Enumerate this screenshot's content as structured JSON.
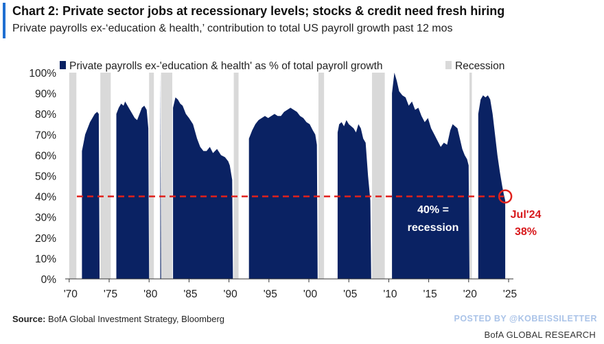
{
  "header": {
    "title": "Chart 2: Private sector jobs at recessionary levels; stocks & credit need fresh hiring",
    "subtitle": "Private payrolls ex-‘education & health,’ contribution to total US payroll growth past 12 mos"
  },
  "footer": {
    "source_label": "Source:",
    "source_text": " BofA Global Investment Strategy, Bloomberg",
    "posted_by": "POSTED BY @KOBEISSILETTER",
    "brand": "BofA GLOBAL RESEARCH"
  },
  "colors": {
    "series": "#0a2263",
    "recession": "#d9d9d9",
    "threshold": "#e0201b",
    "annotation_light": "#ffffff",
    "annotation_red": "#d7191c"
  },
  "chart_data": {
    "type": "area",
    "title": "Chart 2: Private sector jobs at recessionary levels; stocks & credit need fresh hiring",
    "xlabel": "",
    "ylabel": "",
    "xlim": [
      1969.5,
      2025.6
    ],
    "ylim": [
      0,
      100
    ],
    "y_ticks": [
      0,
      10,
      20,
      30,
      40,
      50,
      60,
      70,
      80,
      90,
      100
    ],
    "y_tick_labels": [
      "0%",
      "10%",
      "20%",
      "30%",
      "40%",
      "50%",
      "60%",
      "70%",
      "80%",
      "90%",
      "100%"
    ],
    "x_ticks": [
      1970,
      1975,
      1980,
      1985,
      1990,
      1995,
      2000,
      2005,
      2010,
      2015,
      2020,
      2025
    ],
    "x_tick_labels": [
      "'70",
      "'75",
      "'80",
      "'85",
      "'90",
      "'95",
      "'00",
      "'05",
      "'10",
      "'15",
      "'20",
      "'25"
    ],
    "legend": [
      {
        "name": "Private payrolls ex-'education & health' as % of total payroll growth",
        "kind": "series"
      },
      {
        "name": "Recession",
        "kind": "recession"
      }
    ],
    "legend_position": "top",
    "recessions": [
      [
        1970.0,
        1970.9
      ],
      [
        1973.9,
        1975.2
      ],
      [
        1980.0,
        1980.6
      ],
      [
        1981.5,
        1982.9
      ],
      [
        1990.6,
        1991.2
      ],
      [
        2001.2,
        2001.9
      ],
      [
        2007.9,
        2009.5
      ],
      [
        2020.1,
        2020.4
      ]
    ],
    "series": [
      {
        "name": "Private payrolls ex-'education & health' as % of total payroll growth",
        "segments": [
          [
            [
              1971.6,
              0
            ],
            [
              1971.6,
              62
            ],
            [
              1971.8,
              66
            ],
            [
              1972.0,
              70
            ],
            [
              1972.3,
              73
            ],
            [
              1972.6,
              76
            ],
            [
              1972.9,
              78
            ],
            [
              1973.2,
              80
            ],
            [
              1973.5,
              81
            ],
            [
              1973.7,
              80
            ],
            [
              1973.8,
              0
            ]
          ],
          [
            [
              1975.9,
              0
            ],
            [
              1975.9,
              80
            ],
            [
              1976.2,
              83
            ],
            [
              1976.5,
              85
            ],
            [
              1976.8,
              84
            ],
            [
              1977.0,
              86
            ],
            [
              1977.3,
              84
            ],
            [
              1977.6,
              82
            ],
            [
              1977.9,
              80
            ],
            [
              1978.2,
              78
            ],
            [
              1978.5,
              77
            ],
            [
              1978.8,
              80
            ],
            [
              1979.1,
              83
            ],
            [
              1979.4,
              84
            ],
            [
              1979.7,
              82
            ],
            [
              1979.9,
              73
            ],
            [
              1980.0,
              0
            ]
          ],
          [
            [
              1981.4,
              0
            ],
            [
              1981.4,
              100
            ],
            [
              1981.5,
              0
            ]
          ],
          [
            [
              1983.0,
              0
            ],
            [
              1983.0,
              83
            ],
            [
              1983.3,
              88
            ],
            [
              1983.6,
              87
            ],
            [
              1983.9,
              85
            ],
            [
              1984.2,
              84
            ],
            [
              1984.6,
              80
            ],
            [
              1985.0,
              78
            ],
            [
              1985.5,
              75
            ],
            [
              1986.0,
              68
            ],
            [
              1986.4,
              64
            ],
            [
              1986.8,
              62
            ],
            [
              1987.2,
              62
            ],
            [
              1987.6,
              64
            ],
            [
              1988.0,
              61
            ],
            [
              1988.5,
              63
            ],
            [
              1989.0,
              60
            ],
            [
              1989.5,
              59
            ],
            [
              1989.9,
              57
            ],
            [
              1990.1,
              55
            ],
            [
              1990.4,
              48
            ],
            [
              1990.5,
              0
            ]
          ],
          [
            [
              1992.5,
              0
            ],
            [
              1992.5,
              68
            ],
            [
              1992.9,
              72
            ],
            [
              1993.3,
              75
            ],
            [
              1993.7,
              77
            ],
            [
              1994.1,
              78
            ],
            [
              1994.5,
              79
            ],
            [
              1994.9,
              78
            ],
            [
              1995.3,
              79
            ],
            [
              1995.7,
              80
            ],
            [
              1996.1,
              79
            ],
            [
              1996.5,
              79
            ],
            [
              1996.9,
              81
            ],
            [
              1997.3,
              82
            ],
            [
              1997.7,
              83
            ],
            [
              1998.1,
              82
            ],
            [
              1998.5,
              81
            ],
            [
              1998.9,
              79
            ],
            [
              1999.3,
              78
            ],
            [
              1999.7,
              76
            ],
            [
              2000.1,
              75
            ],
            [
              2000.5,
              72
            ],
            [
              2000.8,
              70
            ],
            [
              2001.0,
              65
            ],
            [
              2001.1,
              0
            ]
          ],
          [
            [
              2003.6,
              0
            ],
            [
              2003.6,
              71
            ],
            [
              2003.8,
              75
            ],
            [
              2004.1,
              76
            ],
            [
              2004.4,
              74
            ],
            [
              2004.7,
              77
            ],
            [
              2005.0,
              75
            ],
            [
              2005.3,
              74
            ],
            [
              2005.6,
              73
            ],
            [
              2005.9,
              71
            ],
            [
              2006.2,
              75
            ],
            [
              2006.5,
              73
            ],
            [
              2006.8,
              68
            ],
            [
              2007.1,
              66
            ],
            [
              2007.4,
              50
            ],
            [
              2007.7,
              38
            ],
            [
              2007.8,
              0
            ]
          ],
          [
            [
              2010.4,
              0
            ],
            [
              2010.4,
              90
            ],
            [
              2010.7,
              100
            ],
            [
              2011.0,
              96
            ],
            [
              2011.3,
              91
            ],
            [
              2011.7,
              89
            ],
            [
              2012.1,
              88
            ],
            [
              2012.5,
              84
            ],
            [
              2012.9,
              86
            ],
            [
              2013.3,
              82
            ],
            [
              2013.7,
              83
            ],
            [
              2014.1,
              79
            ],
            [
              2014.5,
              76
            ],
            [
              2014.9,
              78
            ],
            [
              2015.3,
              73
            ],
            [
              2015.7,
              70
            ],
            [
              2016.1,
              67
            ],
            [
              2016.5,
              64
            ],
            [
              2016.9,
              66
            ],
            [
              2017.3,
              65
            ],
            [
              2017.7,
              72
            ],
            [
              2018.0,
              75
            ],
            [
              2018.3,
              74
            ],
            [
              2018.6,
              73
            ],
            [
              2018.9,
              68
            ],
            [
              2019.2,
              63
            ],
            [
              2019.5,
              60
            ],
            [
              2019.8,
              58
            ],
            [
              2020.0,
              55
            ],
            [
              2020.1,
              0
            ]
          ],
          [
            [
              2021.2,
              0
            ],
            [
              2021.2,
              80
            ],
            [
              2021.5,
              87
            ],
            [
              2021.8,
              89
            ],
            [
              2022.1,
              88
            ],
            [
              2022.4,
              89
            ],
            [
              2022.7,
              87
            ],
            [
              2023.0,
              80
            ],
            [
              2023.3,
              70
            ],
            [
              2023.6,
              60
            ],
            [
              2023.9,
              52
            ],
            [
              2024.2,
              45
            ],
            [
              2024.4,
              41
            ],
            [
              2024.58,
              38
            ],
            [
              2024.58,
              0
            ]
          ]
        ]
      }
    ],
    "threshold": {
      "value": 40,
      "label_line1": "40% =",
      "label_line2": "recession"
    },
    "callout": {
      "date": "Jul'24",
      "value_label": "38%",
      "x": 2024.58,
      "y": 38
    }
  }
}
